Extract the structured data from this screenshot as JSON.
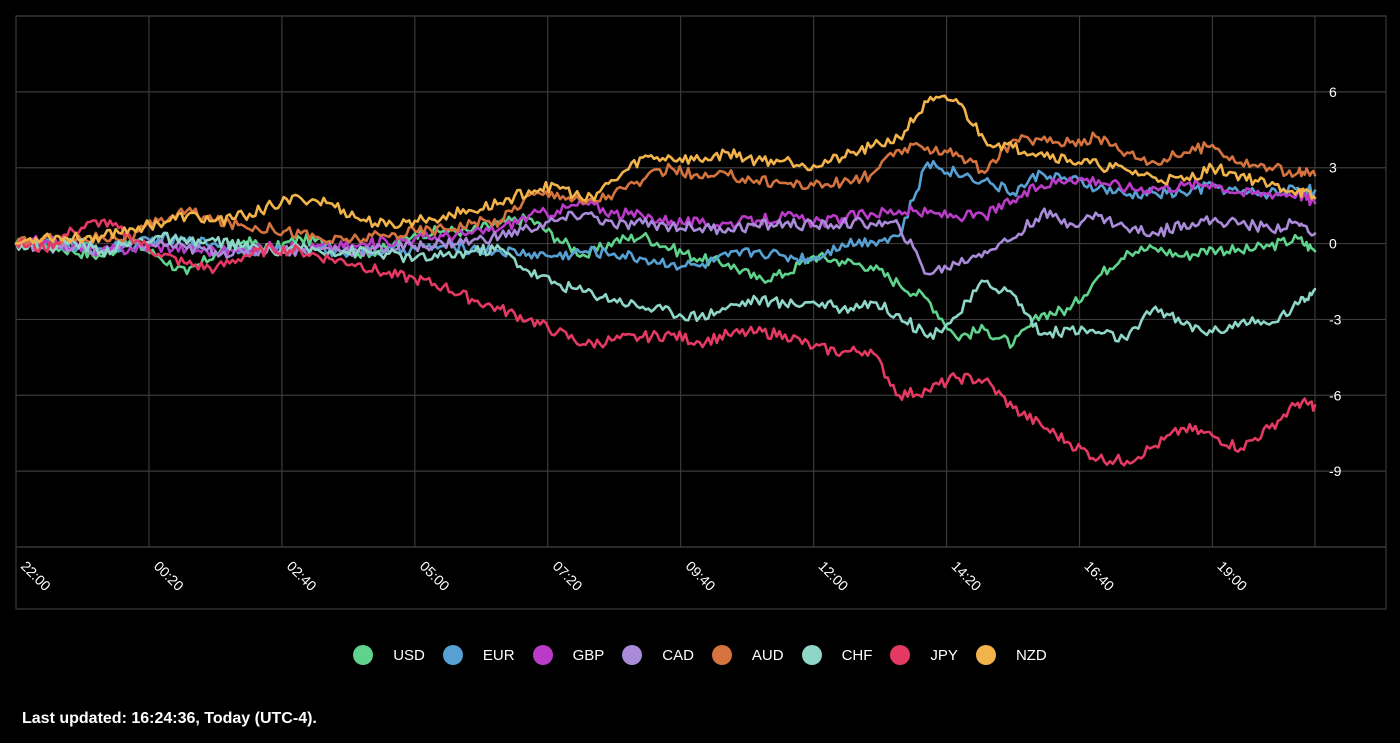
{
  "footer": {
    "last_updated": "Last updated: 16:24:36, Today (UTC-4)."
  },
  "chart_data": {
    "type": "line",
    "x_tick_labels": [
      "22:00",
      "00:20",
      "02:40",
      "05:00",
      "07:20",
      "09:40",
      "12:00",
      "14:20",
      "16:40",
      "19:00"
    ],
    "y_tick_labels": [
      "6",
      "3",
      "0",
      "-3",
      "-6",
      "-9"
    ],
    "y_ticks": [
      6,
      3,
      0,
      -3,
      -6,
      -9
    ],
    "ylim": [
      -12,
      9
    ],
    "x_range_hours": [
      0,
      22.8
    ],
    "grid": true,
    "legend_position": "bottom",
    "x_hours": [
      0,
      0.5,
      1,
      1.5,
      2,
      2.5,
      3,
      3.5,
      4,
      4.5,
      5,
      5.5,
      6,
      6.5,
      7,
      7.5,
      8,
      8.5,
      9,
      9.5,
      10,
      10.5,
      11,
      11.5,
      12,
      12.5,
      13,
      13.5,
      14,
      14.5,
      15,
      15.5,
      16,
      16.5,
      17,
      17.5,
      18,
      18.5,
      19,
      19.5,
      20,
      20.5,
      21,
      21.5,
      22,
      22.5,
      22.8
    ],
    "series": [
      {
        "name": "USD",
        "color": "#5fd38b",
        "values": [
          0,
          0,
          -0.3,
          -0.5,
          0.1,
          -0.5,
          -1.2,
          -0.4,
          0.1,
          -0.2,
          0.2,
          0,
          -0.4,
          -0.2,
          0.4,
          0.5,
          0.5,
          0.8,
          1.0,
          0.2,
          -0.5,
          0.1,
          0.3,
          -0.2,
          -0.6,
          -0.8,
          -1.4,
          -1.2,
          -0.5,
          -0.7,
          -0.9,
          -1.6,
          -2.2,
          -3.7,
          -3.4,
          -4.0,
          -2.8,
          -2.6,
          -1.3,
          -0.3,
          -0.2,
          -0.5,
          -0.2,
          -0.3,
          -0.1,
          0.2,
          -0.3
        ]
      },
      {
        "name": "EUR",
        "color": "#57a0d3",
        "values": [
          0,
          0,
          -0.1,
          -0.2,
          -0.1,
          0.2,
          0.1,
          0,
          -0.2,
          -0.3,
          -0.2,
          -0.3,
          -0.3,
          -0.3,
          -0.2,
          -0.1,
          -0.2,
          -0.3,
          -0.4,
          -0.5,
          -0.3,
          -0.4,
          -0.6,
          -0.8,
          -0.9,
          -0.5,
          -0.3,
          -0.5,
          -0.6,
          0,
          0.1,
          0.3,
          3.2,
          2.8,
          2.5,
          2.0,
          2.8,
          2.5,
          2.2,
          1.9,
          2.0,
          2.0,
          2.3,
          2.0,
          2.0,
          2.2,
          2.1
        ]
      },
      {
        "name": "GBP",
        "color": "#bb3bc9",
        "values": [
          0,
          0.1,
          -0.1,
          -0.3,
          -0.2,
          -0.1,
          -0.2,
          -0.3,
          -0.3,
          -0.1,
          -0.2,
          -0.1,
          -0.1,
          0.1,
          0.2,
          0.3,
          0.4,
          0.6,
          1.1,
          1.3,
          1.6,
          1.2,
          1.1,
          0.9,
          0.8,
          0.8,
          0.9,
          1.1,
          0.8,
          1.0,
          1.2,
          1.3,
          1.2,
          1.1,
          1.1,
          1.7,
          2.3,
          2.6,
          2.5,
          2.2,
          2.2,
          2.3,
          2.4,
          2.0,
          2.0,
          2.0,
          1.6
        ]
      },
      {
        "name": "CAD",
        "color": "#a98bd9",
        "values": [
          0,
          -0.1,
          -0.2,
          -0.3,
          -0.1,
          0,
          -0.2,
          -0.3,
          -0.4,
          -0.2,
          -0.3,
          -0.2,
          -0.3,
          -0.2,
          -0.1,
          0,
          0.1,
          0.3,
          0.6,
          0.9,
          1.2,
          0.7,
          0.8,
          0.7,
          0.6,
          0.6,
          0.7,
          0.8,
          0.7,
          0.8,
          0.8,
          0.7,
          -1.2,
          -0.8,
          -0.3,
          0.2,
          1.2,
          0.8,
          1.1,
          0.6,
          0.4,
          0.8,
          0.9,
          0.8,
          0.6,
          0.8,
          0.4
        ]
      },
      {
        "name": "AUD",
        "color": "#d4733e",
        "values": [
          0,
          0.2,
          0.1,
          0.3,
          0.2,
          0.9,
          1.3,
          0.9,
          0.7,
          0.6,
          0.4,
          0.1,
          0.2,
          0.3,
          0.5,
          0.6,
          0.8,
          0.9,
          1.9,
          2.0,
          1.6,
          2.0,
          2.5,
          3.0,
          2.6,
          2.7,
          2.5,
          2.4,
          2.3,
          2.4,
          2.7,
          3.7,
          3.8,
          3.6,
          2.8,
          4.1,
          4.1,
          4.0,
          4.2,
          3.6,
          3.2,
          3.6,
          3.9,
          3.2,
          3.0,
          2.8,
          2.7
        ]
      },
      {
        "name": "CHF",
        "color": "#8ed6c8",
        "values": [
          0,
          -0.2,
          0.1,
          -0.3,
          0,
          0.3,
          0,
          0.1,
          -0.1,
          -0.3,
          -0.2,
          -0.3,
          -0.3,
          -0.4,
          -0.6,
          -0.5,
          -0.3,
          -0.2,
          -1.1,
          -1.6,
          -1.9,
          -2.2,
          -2.5,
          -2.7,
          -2.9,
          -2.5,
          -2.2,
          -2.4,
          -2.3,
          -2.6,
          -2.3,
          -2.8,
          -3.7,
          -2.9,
          -1.5,
          -2.0,
          -3.6,
          -3.4,
          -3.5,
          -3.8,
          -2.5,
          -3.2,
          -3.5,
          -3.1,
          -3.2,
          -2.4,
          -1.8
        ]
      },
      {
        "name": "JPY",
        "color": "#e43962",
        "values": [
          0,
          -0.2,
          0.5,
          0.9,
          0.3,
          -0.4,
          -0.8,
          -1.0,
          -0.5,
          -0.2,
          -0.3,
          -0.6,
          -0.8,
          -1.2,
          -1.4,
          -1.7,
          -2.2,
          -2.6,
          -3.0,
          -3.5,
          -4.0,
          -3.8,
          -3.7,
          -3.6,
          -3.9,
          -3.6,
          -3.5,
          -3.6,
          -4.1,
          -4.3,
          -4.2,
          -6.0,
          -5.8,
          -5.3,
          -5.4,
          -6.5,
          -7.2,
          -7.9,
          -8.5,
          -8.6,
          -8.0,
          -7.3,
          -7.6,
          -8.1,
          -7.3,
          -6.3,
          -6.4
        ]
      },
      {
        "name": "NZD",
        "color": "#f2b34a",
        "values": [
          0,
          0.3,
          0.2,
          0.3,
          0.6,
          0.8,
          1.1,
          0.9,
          1.1,
          1.5,
          1.8,
          1.6,
          1.0,
          0.7,
          0.9,
          1.1,
          1.3,
          1.6,
          2.1,
          2.3,
          1.7,
          2.5,
          3.4,
          3.4,
          3.3,
          3.6,
          3.3,
          3.3,
          3.1,
          3.4,
          3.8,
          4.2,
          5.6,
          5.7,
          4.1,
          3.8,
          3.6,
          3.3,
          3.1,
          2.9,
          2.6,
          2.5,
          3.0,
          2.7,
          2.3,
          2.1,
          1.8
        ]
      }
    ]
  }
}
